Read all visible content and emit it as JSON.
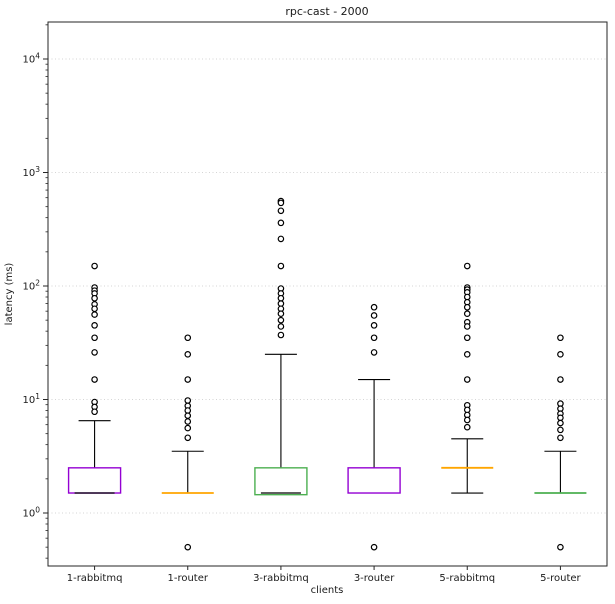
{
  "chart_data": {
    "type": "boxplot",
    "title": "rpc-cast - 2000",
    "xlabel": "clients",
    "ylabel": "latency (ms)",
    "yscale": "log",
    "ylim": [
      0.34,
      21000
    ],
    "ytick_exponents": [
      0,
      1,
      2,
      3,
      4
    ],
    "grid": "major-y dotted",
    "legend": "none",
    "categories": [
      "1-rabbitmq",
      "1-router",
      "3-rabbitmq",
      "3-router",
      "5-rabbitmq",
      "5-router"
    ],
    "colors": {
      "grid": "#c8c8c8",
      "axis": "#262626",
      "whisker": "#000000",
      "median": "#000000",
      "box_palette": [
        "#9400d3",
        "#ffa500",
        "#4caf50"
      ]
    },
    "boxes": [
      {
        "label": "1-rabbitmq",
        "color": "#9400d3",
        "q1": 1.5,
        "median": 1.5,
        "q3": 2.5,
        "whisker_low": 1.5,
        "whisker_high": 6.5,
        "median_line_visible": true,
        "outliers": [
          150,
          97,
          91,
          86,
          78,
          69,
          63,
          56,
          45,
          35,
          26,
          15,
          9.5,
          8.6,
          7.8
        ]
      },
      {
        "label": "1-router",
        "color": "#ffa500",
        "q1": 1.5,
        "median": 1.5,
        "q3": 1.5,
        "whisker_low": 1.5,
        "whisker_high": 3.5,
        "median_line_visible": false,
        "outliers": [
          35,
          25,
          15,
          9.8,
          8.8,
          8.0,
          7.2,
          6.4,
          5.6,
          4.6,
          0.5
        ]
      },
      {
        "label": "3-rabbitmq",
        "color": "#4caf50",
        "q1": 1.45,
        "median": 1.5,
        "q3": 2.5,
        "whisker_low": 1.45,
        "whisker_high": 25,
        "median_line_visible": true,
        "outliers": [
          560,
          540,
          460,
          360,
          260,
          150,
          95,
          86,
          78,
          70,
          63,
          57,
          50,
          44,
          37
        ]
      },
      {
        "label": "3-router",
        "color": "#9400d3",
        "q1": 1.5,
        "median": 1.5,
        "q3": 2.5,
        "whisker_low": 1.5,
        "whisker_high": 15,
        "median_line_visible": false,
        "outliers": [
          65,
          55,
          45,
          35,
          26,
          0.5
        ]
      },
      {
        "label": "5-rabbitmq",
        "color": "#ffa500",
        "q1": 2.5,
        "median": 2.5,
        "q3": 2.5,
        "whisker_low": 1.5,
        "whisker_high": 4.5,
        "median_line_visible": false,
        "outliers": [
          150,
          97,
          93,
          88,
          80,
          72,
          65,
          57,
          48,
          44,
          35,
          25,
          15,
          8.9,
          8.1,
          7.3,
          6.6,
          5.7
        ]
      },
      {
        "label": "5-router",
        "color": "#4caf50",
        "q1": 1.5,
        "median": 1.5,
        "q3": 1.5,
        "whisker_low": 1.5,
        "whisker_high": 3.5,
        "median_line_visible": false,
        "outliers": [
          35,
          25,
          15,
          9.2,
          8.3,
          7.5,
          6.9,
          6.2,
          5.4,
          4.6,
          0.5
        ]
      }
    ]
  }
}
